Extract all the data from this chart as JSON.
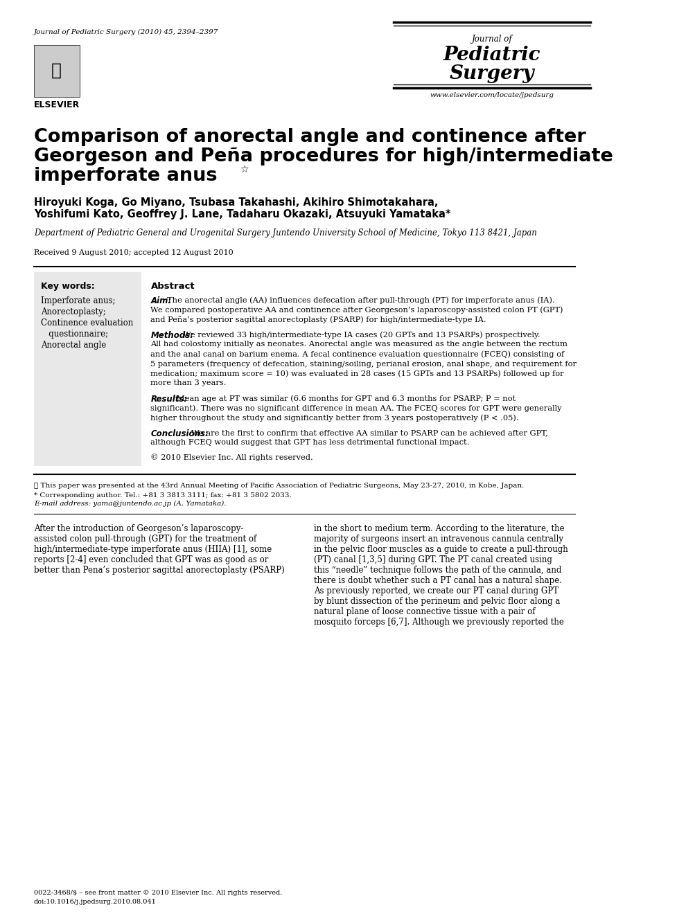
{
  "bg_color": "#ffffff",
  "journal_ref": "Journal of Pediatric Surgery (2010) 45, 2394–2397",
  "journal_name_line1": "Journal of",
  "journal_name_line2": "Pediatric",
  "journal_name_line3": "Surgery",
  "journal_url": "www.elsevier.com/locate/jpedsurg",
  "title_line1": "Comparison of anorectal angle and continence after",
  "title_line2": "Georgeson and Peña procedures for high/intermediate",
  "title_line3": "imperforate anus",
  "title_star": "☆",
  "authors_line1": "Hiroyuki Koga, Go Miyano, Tsubasa Takahashi, Akihiro Shimotakahara,",
  "authors_line2": "Yoshifumi Kato, Geoffrey J. Lane, Tadaharu Okazaki, Atsuyuki Yamataka*",
  "affiliation": "Department of Pediatric General and Urogenital Surgery Juntendo University School of Medicine, Tokyo 113 8421, Japan",
  "received": "Received 9 August 2010; accepted 12 August 2010",
  "keywords_title": "Key words:",
  "keywords": [
    "Imperforate anus;",
    "Anorectoplasty;",
    "Continence evaluation",
    "   questionnaire;",
    "Anorectal angle"
  ],
  "abstract_title": "Abstract",
  "aim_bold": "Aim:",
  "aim_text": " The anorectal angle (AA) influences defecation after pull-through (PT) for imperforate anus (IA). We compared postoperative AA and continence after Georgeson’s laparoscopy-assisted colon PT (GPT) and Peña’s posterior sagittal anorectoplasty (PSARP) for high/intermediate-type IA.",
  "methods_bold": "Methods:",
  "methods_text": " We reviewed 33 high/intermediate-type IA cases (20 GPTs and 13 PSARPs) prospectively. All had colostomy initially as neonates. Anorectal angle was measured as the angle between the rectum and the anal canal on barium enema. A fecal continence evaluation questionnaire (FCEQ) consisting of 5 parameters (frequency of defecation, staining/soiling, perianal erosion, anal shape, and requirement for medication; maximum score = 10) was evaluated in 28 cases (15 GPTs and 13 PSARPs) followed up for more than 3 years.",
  "results_bold": "Results:",
  "results_text": " Mean age at PT was similar (6.6 months for GPT and 6.3 months for PSARP; P = not significant). There was no significant difference in mean AA. The FCEQ scores for GPT were generally higher throughout the study and significantly better from 3 years postoperatively (P < .05).",
  "conclusions_bold": "Conclusions:",
  "conclusions_text": " We are the first to confirm that effective AA similar to PSARP can be achieved after GPT, although FCEQ would suggest that GPT has less detrimental functional impact.",
  "copyright": "© 2010 Elsevier Inc. All rights reserved.",
  "footnote_star": "★ This paper was presented at the 43rd Annual Meeting of Pacific Association of Pediatric Surgeons, May 23-27, 2010, in Kobe, Japan.",
  "footnote_corr": "* Corresponding author. Tel.: +81 3 3813 3111; fax: +81 3 5802 2033.",
  "footnote_email": "E-mail address: yama@juntendo.ac.jp (A. Yamataka).",
  "issn": "0022-3468/$ – see front matter © 2010 Elsevier Inc. All rights reserved.",
  "doi": "doi:10.1016/j.jpedsurg.2010.08.041",
  "body_line1": "After the introduction of Georgeson’s laparoscopy-",
  "body_line2": "assisted colon pull-through (GPT) for the treatment of",
  "body_line3": "high/intermediate-type imperforate anus (HIIA) [1], some",
  "body_line4": "reports [2-4] even concluded that GPT was as good as or",
  "body_line5": "better than Pena’s posterior sagittal anorectoplasty (PSARP)",
  "body_right_line1": "in the short to medium term. According to the literature, the",
  "body_right_line2": "majority of surgeons insert an intravenous cannula centrally",
  "body_right_line3": "in the pelvic floor muscles as a guide to create a pull-through",
  "body_right_line4": "(PT) canal [1,3,5] during GPT. The PT canal created using",
  "body_right_line5": "this “needle” technique follows the path of the cannula, and",
  "body_right_line6": "there is doubt whether such a PT canal has a natural shape.",
  "body_right_line7": "As previously reported, we create our PT canal during GPT",
  "body_right_line8": "by blunt dissection of the perineum and pelvic floor along a",
  "body_right_line9": "natural plane of loose connective tissue with a pair of",
  "body_right_line10": "mosquito forceps [6,7]. Although we previously reported the"
}
